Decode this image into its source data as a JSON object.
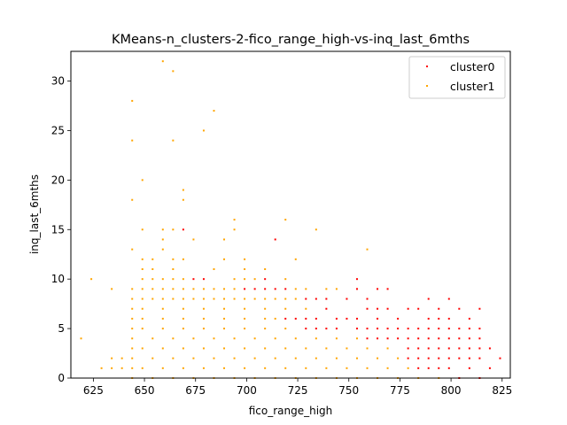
{
  "chart_data": {
    "type": "scatter",
    "title": "KMeans-n_clusters-2-fico_range_high-vs-inq_last_6mths",
    "xlabel": "fico_range_high",
    "ylabel": "inq_last_6mths",
    "xlim": [
      614,
      829
    ],
    "ylim": [
      0,
      33
    ],
    "xticks": [
      625,
      650,
      675,
      700,
      725,
      750,
      775,
      800,
      825
    ],
    "yticks": [
      0,
      5,
      10,
      15,
      20,
      25,
      30
    ],
    "grid": false,
    "legend_position": "top-right",
    "series": [
      {
        "name": "cluster0",
        "color": "#ff0000",
        "points": [
          [
            669,
            15
          ],
          [
            714,
            14
          ],
          [
            679,
            10
          ],
          [
            674,
            10
          ],
          [
            699,
            9
          ],
          [
            704,
            9
          ],
          [
            709,
            9
          ],
          [
            709,
            10
          ],
          [
            714,
            9
          ],
          [
            719,
            9
          ],
          [
            729,
            8
          ],
          [
            734,
            8
          ],
          [
            739,
            8
          ],
          [
            749,
            8
          ],
          [
            754,
            9
          ],
          [
            754,
            10
          ],
          [
            759,
            8
          ],
          [
            764,
            9
          ],
          [
            769,
            9
          ],
          [
            759,
            7
          ],
          [
            764,
            7
          ],
          [
            769,
            7
          ],
          [
            754,
            6
          ],
          [
            774,
            6
          ],
          [
            774,
            5
          ],
          [
            779,
            5
          ],
          [
            784,
            5
          ],
          [
            789,
            5
          ],
          [
            794,
            5
          ],
          [
            799,
            5
          ],
          [
            779,
            4
          ],
          [
            784,
            4
          ],
          [
            789,
            4
          ],
          [
            794,
            4
          ],
          [
            799,
            4
          ],
          [
            804,
            4
          ],
          [
            809,
            4
          ],
          [
            779,
            7
          ],
          [
            784,
            7
          ],
          [
            789,
            8
          ],
          [
            794,
            7
          ],
          [
            799,
            8
          ],
          [
            804,
            7
          ],
          [
            809,
            6
          ],
          [
            814,
            7
          ],
          [
            789,
            6
          ],
          [
            794,
            6
          ],
          [
            779,
            3
          ],
          [
            784,
            3
          ],
          [
            789,
            3
          ],
          [
            794,
            3
          ],
          [
            799,
            3
          ],
          [
            804,
            3
          ],
          [
            809,
            3
          ],
          [
            814,
            3
          ],
          [
            819,
            3
          ],
          [
            784,
            2
          ],
          [
            789,
            2
          ],
          [
            794,
            2
          ],
          [
            799,
            2
          ],
          [
            804,
            2
          ],
          [
            809,
            2
          ],
          [
            814,
            2
          ],
          [
            819,
            1
          ],
          [
            824,
            2
          ],
          [
            809,
            5
          ],
          [
            814,
            5
          ],
          [
            814,
            4
          ],
          [
            804,
            5
          ],
          [
            799,
            6
          ],
          [
            749,
            6
          ],
          [
            739,
            7
          ],
          [
            744,
            6
          ],
          [
            734,
            6
          ],
          [
            729,
            6
          ],
          [
            764,
            6
          ],
          [
            764,
            5
          ],
          [
            769,
            5
          ],
          [
            759,
            5
          ],
          [
            754,
            5
          ],
          [
            744,
            5
          ],
          [
            739,
            5
          ],
          [
            734,
            5
          ],
          [
            729,
            5
          ],
          [
            724,
            6
          ],
          [
            719,
            6
          ],
          [
            774,
            4
          ],
          [
            769,
            4
          ],
          [
            764,
            4
          ],
          [
            759,
            4
          ],
          [
            809,
            1
          ],
          [
            799,
            1
          ],
          [
            794,
            1
          ],
          [
            789,
            1
          ],
          [
            784,
            1
          ],
          [
            804,
            0
          ],
          [
            814,
            0
          ],
          [
            779,
            2
          ]
        ]
      },
      {
        "name": "cluster1",
        "color": "#ffa500",
        "points": [
          [
            619,
            4
          ],
          [
            624,
            10
          ],
          [
            629,
            1
          ],
          [
            634,
            9
          ],
          [
            634,
            2
          ],
          [
            634,
            1
          ],
          [
            639,
            2
          ],
          [
            639,
            1
          ],
          [
            644,
            28
          ],
          [
            644,
            24
          ],
          [
            644,
            18
          ],
          [
            644,
            13
          ],
          [
            649,
            20
          ],
          [
            649,
            15
          ],
          [
            654,
            12
          ],
          [
            654,
            11
          ],
          [
            659,
            32
          ],
          [
            659,
            15
          ],
          [
            659,
            14
          ],
          [
            659,
            13
          ],
          [
            664,
            31
          ],
          [
            664,
            24
          ],
          [
            664,
            15
          ],
          [
            664,
            12
          ],
          [
            664,
            11
          ],
          [
            669,
            19
          ],
          [
            669,
            18
          ],
          [
            669,
            12
          ],
          [
            674,
            14
          ],
          [
            679,
            25
          ],
          [
            684,
            27
          ],
          [
            684,
            11
          ],
          [
            689,
            14
          ],
          [
            689,
            12
          ],
          [
            694,
            16
          ],
          [
            694,
            15
          ],
          [
            699,
            12
          ],
          [
            699,
            11
          ],
          [
            699,
            10
          ],
          [
            709,
            11
          ],
          [
            719,
            16
          ],
          [
            724,
            12
          ],
          [
            734,
            15
          ],
          [
            744,
            9
          ],
          [
            759,
            13
          ],
          [
            654,
            10
          ],
          [
            659,
            10
          ],
          [
            664,
            10
          ],
          [
            669,
            10
          ],
          [
            649,
            12
          ],
          [
            649,
            11
          ],
          [
            649,
            10
          ],
          [
            644,
            9
          ],
          [
            649,
            9
          ],
          [
            654,
            9
          ],
          [
            659,
            9
          ],
          [
            664,
            9
          ],
          [
            669,
            9
          ],
          [
            674,
            9
          ],
          [
            679,
            9
          ],
          [
            684,
            9
          ],
          [
            689,
            9
          ],
          [
            694,
            9
          ],
          [
            644,
            8
          ],
          [
            644,
            7
          ],
          [
            644,
            6
          ],
          [
            644,
            5
          ],
          [
            644,
            4
          ],
          [
            644,
            3
          ],
          [
            644,
            2
          ],
          [
            644,
            1
          ],
          [
            644,
            0
          ],
          [
            654,
            0
          ],
          [
            664,
            0
          ],
          [
            674,
            0
          ],
          [
            684,
            0
          ],
          [
            694,
            0
          ],
          [
            704,
            0
          ],
          [
            714,
            0
          ],
          [
            724,
            0
          ],
          [
            734,
            0
          ],
          [
            744,
            0
          ],
          [
            754,
            0
          ],
          [
            764,
            0
          ],
          [
            774,
            0
          ],
          [
            784,
            0
          ],
          [
            794,
            0
          ],
          [
            649,
            8
          ],
          [
            654,
            8
          ],
          [
            659,
            8
          ],
          [
            664,
            8
          ],
          [
            669,
            8
          ],
          [
            674,
            8
          ],
          [
            679,
            8
          ],
          [
            684,
            8
          ],
          [
            689,
            8
          ],
          [
            694,
            8
          ],
          [
            699,
            8
          ],
          [
            704,
            8
          ],
          [
            709,
            8
          ],
          [
            714,
            8
          ],
          [
            719,
            8
          ],
          [
            724,
            8
          ],
          [
            649,
            7
          ],
          [
            659,
            7
          ],
          [
            669,
            7
          ],
          [
            679,
            7
          ],
          [
            689,
            7
          ],
          [
            699,
            7
          ],
          [
            709,
            7
          ],
          [
            719,
            7
          ],
          [
            729,
            7
          ],
          [
            649,
            6
          ],
          [
            659,
            6
          ],
          [
            669,
            6
          ],
          [
            679,
            6
          ],
          [
            689,
            6
          ],
          [
            699,
            6
          ],
          [
            709,
            6
          ],
          [
            714,
            6
          ],
          [
            649,
            5
          ],
          [
            659,
            5
          ],
          [
            669,
            5
          ],
          [
            679,
            5
          ],
          [
            689,
            5
          ],
          [
            699,
            5
          ],
          [
            709,
            5
          ],
          [
            719,
            5
          ],
          [
            654,
            4
          ],
          [
            664,
            4
          ],
          [
            674,
            4
          ],
          [
            684,
            4
          ],
          [
            694,
            4
          ],
          [
            704,
            4
          ],
          [
            714,
            4
          ],
          [
            724,
            4
          ],
          [
            734,
            4
          ],
          [
            744,
            4
          ],
          [
            754,
            4
          ],
          [
            649,
            3
          ],
          [
            659,
            3
          ],
          [
            669,
            3
          ],
          [
            679,
            3
          ],
          [
            689,
            3
          ],
          [
            699,
            3
          ],
          [
            709,
            3
          ],
          [
            719,
            3
          ],
          [
            729,
            3
          ],
          [
            739,
            3
          ],
          [
            749,
            3
          ],
          [
            759,
            3
          ],
          [
            769,
            3
          ],
          [
            654,
            2
          ],
          [
            664,
            2
          ],
          [
            674,
            2
          ],
          [
            684,
            2
          ],
          [
            694,
            2
          ],
          [
            704,
            2
          ],
          [
            714,
            2
          ],
          [
            724,
            2
          ],
          [
            734,
            2
          ],
          [
            744,
            2
          ],
          [
            754,
            2
          ],
          [
            764,
            2
          ],
          [
            774,
            2
          ],
          [
            649,
            1
          ],
          [
            659,
            1
          ],
          [
            669,
            1
          ],
          [
            679,
            1
          ],
          [
            689,
            1
          ],
          [
            699,
            1
          ],
          [
            709,
            1
          ],
          [
            719,
            1
          ],
          [
            729,
            1
          ],
          [
            739,
            1
          ],
          [
            749,
            1
          ],
          [
            759,
            1
          ],
          [
            769,
            1
          ],
          [
            779,
            1
          ],
          [
            729,
            9
          ],
          [
            739,
            9
          ],
          [
            719,
            10
          ],
          [
            724,
            9
          ],
          [
            704,
            10
          ],
          [
            694,
            10
          ]
        ]
      }
    ]
  }
}
